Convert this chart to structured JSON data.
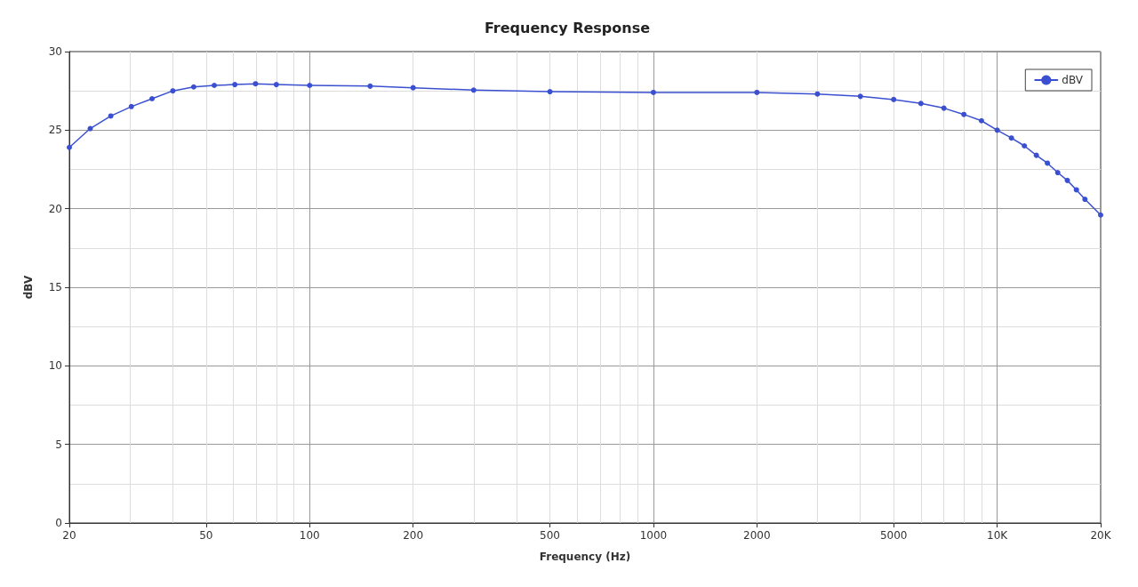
{
  "chart_data": {
    "type": "line",
    "title": "Frequency Response",
    "xlabel": "Frequency (Hz)",
    "ylabel": "dBV",
    "log": "x",
    "grid": true,
    "legend": "top right",
    "marker": "circle",
    "line_style": "solid",
    "xlim": [
      20,
      20000
    ],
    "xticks": [
      20,
      50,
      100,
      200,
      500,
      1000,
      2000,
      5000,
      {
        "value": 10000,
        "label": "10K"
      },
      {
        "value": 20000,
        "label": "20K"
      }
    ],
    "ylim": [
      0,
      30
    ],
    "yticks": [
      0,
      5,
      10,
      15,
      20,
      25,
      30
    ],
    "series": [
      {
        "name": "dBV",
        "color": "#3a50d0",
        "x": [
          20,
          23,
          26.4,
          30.3,
          34.8,
          40,
          46,
          52.8,
          60.6,
          69.6,
          80,
          100,
          150,
          200,
          300,
          500,
          1000,
          2000,
          3000,
          4000,
          5000,
          6000,
          7000,
          8000,
          9000,
          10000,
          11000,
          12000,
          13000,
          14000,
          15000,
          16000,
          17000,
          18000,
          20000
        ],
        "values": [
          23.9,
          25.1,
          25.9,
          26.5,
          27.0,
          27.5,
          27.75,
          27.85,
          27.9,
          27.95,
          27.9,
          27.85,
          27.8,
          27.7,
          27.55,
          27.45,
          27.4,
          27.4,
          27.3,
          27.15,
          26.95,
          26.7,
          26.4,
          26.0,
          25.6,
          25.0,
          24.5,
          24.0,
          23.4,
          22.9,
          22.3,
          21.8,
          21.2,
          20.6,
          19.6
        ]
      }
    ]
  }
}
